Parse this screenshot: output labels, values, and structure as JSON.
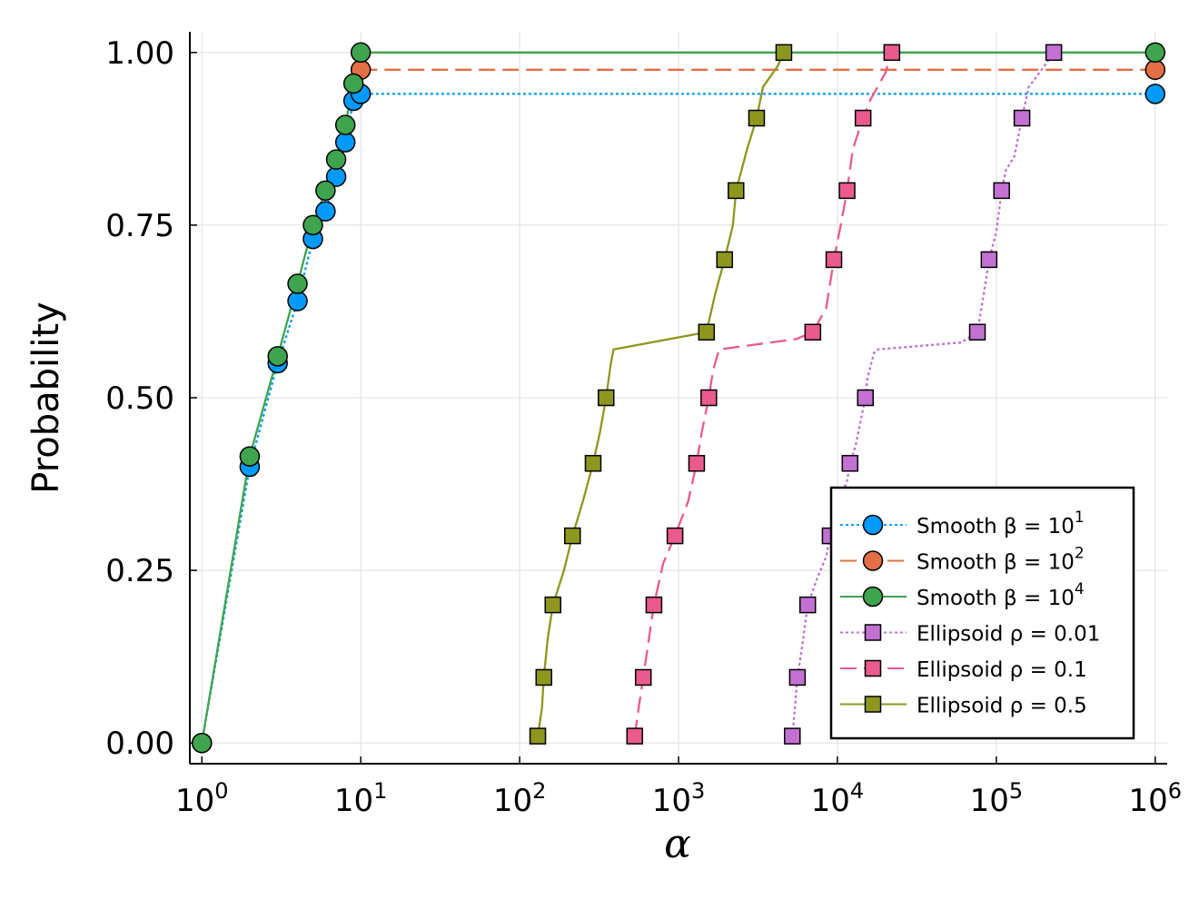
{
  "chart_data": {
    "type": "line",
    "title": "",
    "xlabel": "α",
    "ylabel": "Probability",
    "xscale": "log",
    "xlim": [
      0.84,
      1190000.0
    ],
    "ylim": [
      -0.03,
      1.03
    ],
    "x_ticks": [
      {
        "base": "10",
        "exp": "0",
        "value": 1
      },
      {
        "base": "10",
        "exp": "1",
        "value": 10
      },
      {
        "base": "10",
        "exp": "2",
        "value": 100
      },
      {
        "base": "10",
        "exp": "3",
        "value": 1000
      },
      {
        "base": "10",
        "exp": "4",
        "value": 10000
      },
      {
        "base": "10",
        "exp": "5",
        "value": 100000
      },
      {
        "base": "10",
        "exp": "6",
        "value": 1000000
      }
    ],
    "y_ticks": [
      {
        "label": "0.00",
        "value": 0
      },
      {
        "label": "0.25",
        "value": 0.25
      },
      {
        "label": "0.50",
        "value": 0.5
      },
      {
        "label": "0.75",
        "value": 0.75
      },
      {
        "label": "1.00",
        "value": 1
      }
    ],
    "grid": true,
    "legend_position": "bottom-right",
    "series": [
      {
        "name": "Smooth β = 10",
        "name_exp": "1",
        "color": "#009AFA",
        "dash": "3,3",
        "marker": "circle",
        "line": [
          [
            1,
            0
          ],
          [
            2,
            0.4
          ],
          [
            3,
            0.55
          ],
          [
            4,
            0.64
          ],
          [
            5,
            0.73
          ],
          [
            6,
            0.77
          ],
          [
            7,
            0.82
          ],
          [
            8,
            0.87
          ],
          [
            9,
            0.93
          ],
          [
            10,
            0.94
          ],
          [
            1000000,
            0.94
          ]
        ],
        "points": [
          [
            1,
            0
          ],
          [
            2,
            0.4
          ],
          [
            3,
            0.55
          ],
          [
            4,
            0.64
          ],
          [
            5,
            0.73
          ],
          [
            6,
            0.77
          ],
          [
            7,
            0.82
          ],
          [
            8,
            0.87
          ],
          [
            9,
            0.93
          ],
          [
            10,
            0.94
          ],
          [
            1000000,
            0.94
          ]
        ]
      },
      {
        "name": "Smooth β = 10",
        "name_exp": "2",
        "color": "#E36F47",
        "dash": "18,8",
        "marker": "circle",
        "line": [
          [
            10,
            0.975
          ],
          [
            1000000,
            0.975
          ]
        ],
        "points": [
          [
            10,
            0.975
          ],
          [
            1000000,
            0.975
          ]
        ]
      },
      {
        "name": "Smooth β = 10",
        "name_exp": "4",
        "color": "#3EA44E",
        "dash": "",
        "marker": "circle",
        "line": [
          [
            1,
            0
          ],
          [
            2,
            0.415
          ],
          [
            3,
            0.56
          ],
          [
            4,
            0.665
          ],
          [
            5,
            0.75
          ],
          [
            6,
            0.8
          ],
          [
            7,
            0.845
          ],
          [
            8,
            0.895
          ],
          [
            9,
            0.955
          ],
          [
            10,
            1.0
          ],
          [
            1000000,
            1.0
          ]
        ],
        "points": [
          [
            1,
            0
          ],
          [
            2,
            0.415
          ],
          [
            3,
            0.56
          ],
          [
            4,
            0.665
          ],
          [
            5,
            0.75
          ],
          [
            6,
            0.8
          ],
          [
            7,
            0.845
          ],
          [
            8,
            0.895
          ],
          [
            9,
            0.955
          ],
          [
            10,
            1.0
          ],
          [
            1000000,
            1.0
          ]
        ]
      },
      {
        "name": "Ellipsoid ρ = 0.01",
        "name_exp": "",
        "color": "#C271D2",
        "dash": "3,3",
        "marker": "square",
        "line": [
          [
            5200,
            0.01
          ],
          [
            5400,
            0.05
          ],
          [
            5600,
            0.095
          ],
          [
            6000,
            0.14
          ],
          [
            6500,
            0.2
          ],
          [
            7500,
            0.24
          ],
          [
            8500,
            0.27
          ],
          [
            9000,
            0.3
          ],
          [
            10000,
            0.34
          ],
          [
            11500,
            0.38
          ],
          [
            12000,
            0.405
          ],
          [
            13000,
            0.43
          ],
          [
            15000,
            0.5
          ],
          [
            15500,
            0.53
          ],
          [
            17000,
            0.565
          ],
          [
            18000,
            0.57
          ],
          [
            60000,
            0.58
          ],
          [
            76000,
            0.595
          ],
          [
            82000,
            0.64
          ],
          [
            90000,
            0.7
          ],
          [
            100000,
            0.74
          ],
          [
            108000,
            0.8
          ],
          [
            115000,
            0.83
          ],
          [
            130000,
            0.85
          ],
          [
            145000,
            0.905
          ],
          [
            160000,
            0.95
          ],
          [
            200000,
            0.98
          ],
          [
            230000,
            1.0
          ]
        ],
        "points": [
          [
            5200,
            0.01
          ],
          [
            5600,
            0.095
          ],
          [
            6500,
            0.2
          ],
          [
            9000,
            0.3
          ],
          [
            12000,
            0.405
          ],
          [
            15000,
            0.5
          ],
          [
            76000,
            0.595
          ],
          [
            90000,
            0.7
          ],
          [
            108000,
            0.8
          ],
          [
            145000,
            0.905
          ],
          [
            230000,
            1.0
          ]
        ]
      },
      {
        "name": "Ellipsoid ρ = 0.1",
        "name_exp": "",
        "color": "#EA5A8D",
        "dash": "18,8",
        "marker": "square",
        "line": [
          [
            530,
            0.01
          ],
          [
            560,
            0.05
          ],
          [
            600,
            0.095
          ],
          [
            650,
            0.15
          ],
          [
            700,
            0.2
          ],
          [
            800,
            0.26
          ],
          [
            950,
            0.3
          ],
          [
            1150,
            0.35
          ],
          [
            1300,
            0.405
          ],
          [
            1400,
            0.45
          ],
          [
            1550,
            0.5
          ],
          [
            1650,
            0.54
          ],
          [
            1800,
            0.57
          ],
          [
            5500,
            0.585
          ],
          [
            7000,
            0.595
          ],
          [
            8500,
            0.63
          ],
          [
            9500,
            0.7
          ],
          [
            10500,
            0.75
          ],
          [
            11500,
            0.8
          ],
          [
            12500,
            0.86
          ],
          [
            14500,
            0.905
          ],
          [
            16000,
            0.93
          ],
          [
            20000,
            0.97
          ],
          [
            22000,
            1.0
          ]
        ],
        "points": [
          [
            530,
            0.01
          ],
          [
            600,
            0.095
          ],
          [
            700,
            0.2
          ],
          [
            950,
            0.3
          ],
          [
            1300,
            0.405
          ],
          [
            1550,
            0.5
          ],
          [
            7000,
            0.595
          ],
          [
            9500,
            0.7
          ],
          [
            11500,
            0.8
          ],
          [
            14500,
            0.905
          ],
          [
            22000,
            1.0
          ]
        ]
      },
      {
        "name": "Ellipsoid ρ = 0.5",
        "name_exp": "",
        "color": "#8E971D",
        "dash": "",
        "marker": "square",
        "line": [
          [
            130,
            0.01
          ],
          [
            138,
            0.05
          ],
          [
            142,
            0.095
          ],
          [
            150,
            0.15
          ],
          [
            162,
            0.2
          ],
          [
            190,
            0.25
          ],
          [
            215,
            0.3
          ],
          [
            250,
            0.35
          ],
          [
            290,
            0.405
          ],
          [
            320,
            0.45
          ],
          [
            350,
            0.5
          ],
          [
            375,
            0.55
          ],
          [
            390,
            0.57
          ],
          [
            1500,
            0.595
          ],
          [
            1700,
            0.65
          ],
          [
            1950,
            0.7
          ],
          [
            2200,
            0.75
          ],
          [
            2300,
            0.8
          ],
          [
            2700,
            0.86
          ],
          [
            3100,
            0.905
          ],
          [
            3400,
            0.95
          ],
          [
            4200,
            0.98
          ],
          [
            4600,
            1.0
          ]
        ],
        "points": [
          [
            130,
            0.01
          ],
          [
            142,
            0.095
          ],
          [
            162,
            0.2
          ],
          [
            215,
            0.3
          ],
          [
            290,
            0.405
          ],
          [
            350,
            0.5
          ],
          [
            1500,
            0.595
          ],
          [
            1950,
            0.7
          ],
          [
            2300,
            0.8
          ],
          [
            3100,
            0.905
          ],
          [
            4600,
            1.0
          ]
        ]
      }
    ]
  }
}
